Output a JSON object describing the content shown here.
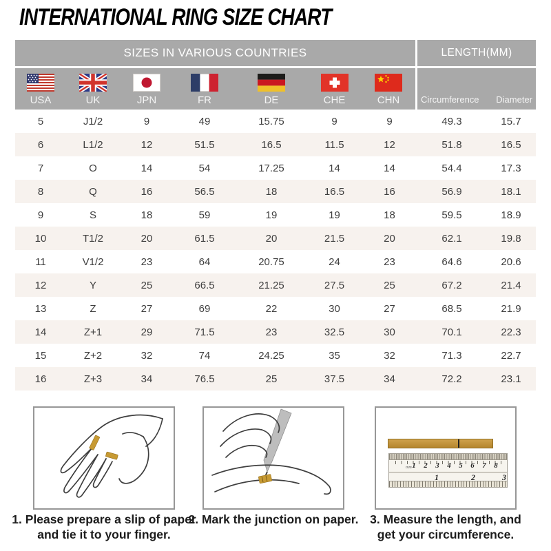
{
  "title": "INTERNATIONAL RING SIZE CHART",
  "table": {
    "group_headers": {
      "countries": "SIZES IN VARIOUS COUNTRIES",
      "length": "LENGTH(MM)"
    },
    "columns": [
      "USA",
      "UK",
      "JPN",
      "FR",
      "DE",
      "CHE",
      "CHN",
      "Circumference",
      "Diameter"
    ],
    "flag_icons": [
      "usa-flag",
      "uk-flag",
      "jpn-flag",
      "fr-flag",
      "de-flag",
      "che-flag",
      "chn-flag"
    ],
    "rows": [
      [
        "5",
        "J1/2",
        "9",
        "49",
        "15.75",
        "9",
        "9",
        "49.3",
        "15.7"
      ],
      [
        "6",
        "L1/2",
        "12",
        "51.5",
        "16.5",
        "11.5",
        "12",
        "51.8",
        "16.5"
      ],
      [
        "7",
        "O",
        "14",
        "54",
        "17.25",
        "14",
        "14",
        "54.4",
        "17.3"
      ],
      [
        "8",
        "Q",
        "16",
        "56.5",
        "18",
        "16.5",
        "16",
        "56.9",
        "18.1"
      ],
      [
        "9",
        "S",
        "18",
        "59",
        "19",
        "19",
        "18",
        "59.5",
        "18.9"
      ],
      [
        "10",
        "T1/2",
        "20",
        "61.5",
        "20",
        "21.5",
        "20",
        "62.1",
        "19.8"
      ],
      [
        "11",
        "V1/2",
        "23",
        "64",
        "20.75",
        "24",
        "23",
        "64.6",
        "20.6"
      ],
      [
        "12",
        "Y",
        "25",
        "66.5",
        "21.25",
        "27.5",
        "25",
        "67.2",
        "21.4"
      ],
      [
        "13",
        "Z",
        "27",
        "69",
        "22",
        "30",
        "27",
        "68.5",
        "21.9"
      ],
      [
        "14",
        "Z+1",
        "29",
        "71.5",
        "23",
        "32.5",
        "30",
        "70.1",
        "22.3"
      ],
      [
        "15",
        "Z+2",
        "32",
        "74",
        "24.25",
        "35",
        "32",
        "71.3",
        "22.7"
      ],
      [
        "16",
        "Z+3",
        "34",
        "76.5",
        "25",
        "37.5",
        "34",
        "72.2",
        "23.1"
      ]
    ]
  },
  "steps": [
    {
      "lines": [
        "1. Please prepare a slip of paper",
        "and tie it to your finger."
      ]
    },
    {
      "lines": [
        "2. Mark the junction on paper."
      ]
    },
    {
      "lines": [
        "3. Measure the length, and",
        "get your circumference."
      ]
    }
  ],
  "ruler": {
    "cm": [
      "1",
      "2",
      "3",
      "4",
      "5",
      "6",
      "7",
      "8"
    ],
    "inch": [
      "1",
      "2",
      "3"
    ],
    "unit": "mm"
  },
  "colors": {
    "header_gray": "#a9a9a9",
    "alt_row": "#f7f2ee",
    "paper_gold": "#c79a33"
  }
}
